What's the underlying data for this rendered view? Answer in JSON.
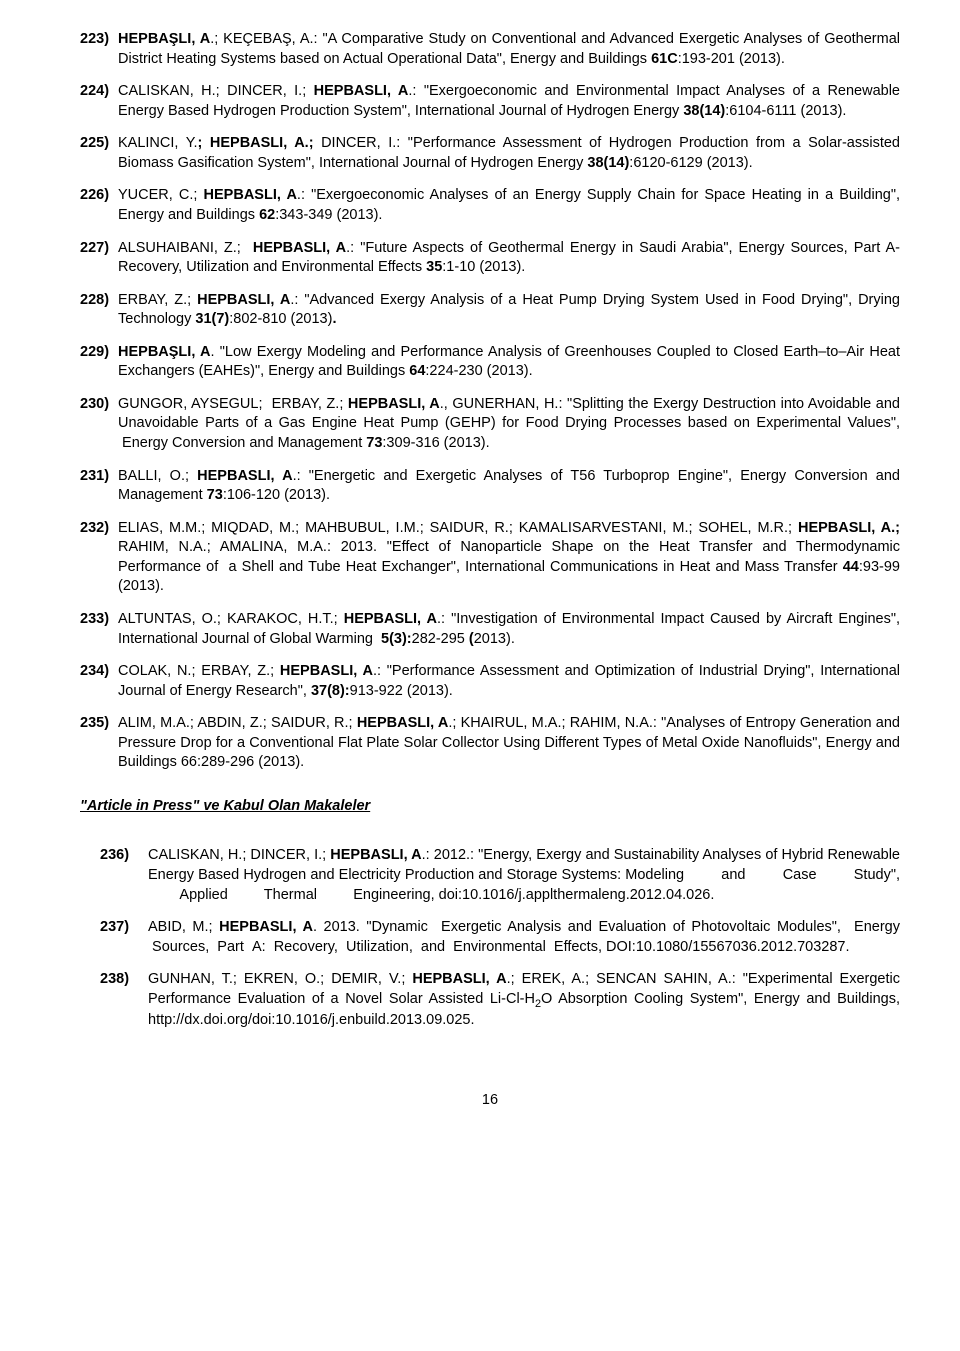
{
  "entries": [
    {
      "num": "223)",
      "html": "<span class='b'>HEPBAŞLI, A</span>.; KEÇEBAŞ, A.: \"A Comparative Study on Conventional and Advanced Exergetic Analyses of Geothermal District Heating Systems based on Actual Operational Data\", Energy and Buildings <span class='b'>61C</span>:193-201 (2013)."
    },
    {
      "num": "224)",
      "html": "CALISKAN, H.; DINCER, I.; <span class='b'>HEPBASLI, A</span>.: \"Exergoeconomic and Environmental Impact Analyses of a Renewable Energy Based Hydrogen Production System\", International Journal of Hydrogen Energy <span class='b'>38(14)</span>:6104-6111 (2013)."
    },
    {
      "num": "225)",
      "html": "KALINCI, Y.<span class='b'>; HEPBASLI, A.;</span> DINCER, I.: \"Performance Assessment of Hydrogen Production from a Solar-assisted Biomass Gasification System\", International Journal of Hydrogen Energy <span class='b'>38(14)</span>:6120-6129 (2013)."
    },
    {
      "num": "226)",
      "html": "YUCER, C.; <span class='b'>HEPBASLI, A</span>.: \"Exergoeconomic Analyses of an Energy Supply Chain for Space Heating in a Building\", Energy and Buildings <span class='b'>62</span>:343-349 (2013)."
    },
    {
      "num": "227)",
      "html": "ALSUHAIBANI, Z.; &nbsp;<span class='b'>HEPBASLI, A</span>.: \"Future Aspects of Geothermal Energy in Saudi Arabia\", Energy Sources, Part A-Recovery, Utilization and Environmental Effects <span class='b'>35</span>:1-10 (2013)."
    },
    {
      "num": "228)",
      "html": "ERBAY, Z.; <span class='b'>HEPBASLI, A</span>.: \"Advanced Exergy Analysis of a Heat Pump Drying System Used in Food Drying\", Drying Technology <span class='b'>31(7)</span>:802-810 (2013)<span class='b'>.</span>"
    },
    {
      "num": "229)",
      "html": "<span class='b'>HEPBAŞLI, A</span>. \"Low Exergy Modeling and Performance Analysis of Greenhouses Coupled to Closed Earth–to–Air Heat Exchangers (EAHEs)\", Energy and Buildings <span class='b'>64</span>:224-230 (2013)."
    },
    {
      "num": "230)",
      "html": "GUNGOR, AYSEGUL; &nbsp;ERBAY, Z.; <span class='b'>HEPBASLI, A</span>., GUNERHAN, H.: \"Splitting the Exergy Destruction into Avoidable and Unavoidable Parts of a Gas Engine Heat Pump (GEHP) for Food Drying Processes based on Experimental Values\", &nbsp;Energy Conversion and Management <span class='b'>73</span>:309-316 (2013)."
    },
    {
      "num": "231)",
      "html": "BALLI, O.; <span class='b'>HEPBASLI, A</span>.: \"Energetic and Exergetic Analyses of T56 Turboprop Engine\", Energy Conversion and Management <span class='b'>73</span>:106-120 (2013)."
    },
    {
      "num": "232)",
      "html": "ELIAS, M.M.; MIQDAD, M.; MAHBUBUL, I.M.; SAIDUR, R.; KAMALISARVESTANI, M.; SOHEL, M.R.; <span class='b'>HEPBASLI, A.;</span> RAHIM, N.A.; AMALINA, M.A.: 2013. \"Effect of Nanoparticle Shape on the Heat Transfer and Thermodynamic Performance of &nbsp;a Shell and Tube Heat Exchanger\", International Communications in Heat and Mass Transfer <span class='b'>44</span>:93-99 (2013)."
    },
    {
      "num": "233)",
      "html": "ALTUNTAS, O.; KARAKOC, H.T.; <span class='b'>HEPBASLI, A</span>.: \"Investigation of Environmental Impact Caused by Aircraft Engines\", International Journal of Global Warming &nbsp;<span class='b'>5(3):</span>282-295 <span class='b'>(</span>2013)."
    },
    {
      "num": "234)",
      "html": "COLAK, N.; ERBAY, Z.; <span class='b'>HEPBASLI, A</span>.: \"Performance Assessment and Optimization of Industrial Drying\", International Journal of Energy Research\", <span class='b'>37(8):</span>913-922 (2013)."
    },
    {
      "num": "235)",
      "html": "ALIM, M.A.; ABDIN, Z.; SAIDUR, R.; <span class='b'>HEPBASLI, A</span>.; KHAIRUL, M.A.; RAHIM, N.A.: \"Analyses of Entropy Generation and Pressure Drop for a Conventional Flat Plate Solar Collector Using Different Types of Metal Oxide Nanofluids\", Energy and Buildings 66:289-296 (2013)."
    }
  ],
  "sectionTitle": "\"Article in Press\" ve  Kabul Olan Makaleler",
  "subEntries": [
    {
      "num": "236)",
      "html": "CALISKAN, H.; DINCER, I.; <span class='b'>HEPBASLI, A</span>.: 2012.: \"Energy, Exergy and Sustainability Analyses of Hybrid Renewable Energy Based Hydrogen and Electricity Production and Storage Systems: Modeling &nbsp; &nbsp; &nbsp; &nbsp; and &nbsp; &nbsp; &nbsp; &nbsp; Case &nbsp; &nbsp; &nbsp; &nbsp; Study\", &nbsp; &nbsp; &nbsp; &nbsp; Applied &nbsp; &nbsp; &nbsp; &nbsp; Thermal &nbsp; &nbsp; &nbsp; &nbsp; Engineering, doi:10.1016/j.applthermaleng.2012.04.026."
    },
    {
      "num": "237)",
      "html": "ABID, M.; <span class='b'>HEPBASLI, A</span>. 2013. \"Dynamic &nbsp;Exergetic Analysis and Evaluation of Photovoltaic Modules\", &nbsp;Energy &nbsp;Sources, &nbsp;Part &nbsp;A: &nbsp;Recovery, &nbsp;Utilization, &nbsp;and &nbsp;Environmental &nbsp;Effects, DOI:10.1080/15567036.2012.703287."
    },
    {
      "num": "238)",
      "html": "GUNHAN, T.; EKREN, O.; DEMIR, V.; <span class='b'>HEPBASLI, A</span>.; EREK, A.; SENCAN SAHIN, A.: \"Experimental Exergetic Performance Evaluation of a Novel Solar Assisted Li-Cl-H<sub>2</sub>O Absorption Cooling System\", Energy and Buildings, http://dx.doi.org/doi:10.1016/j.enbuild.2013.09.025."
    }
  ],
  "pageNumber": "16"
}
